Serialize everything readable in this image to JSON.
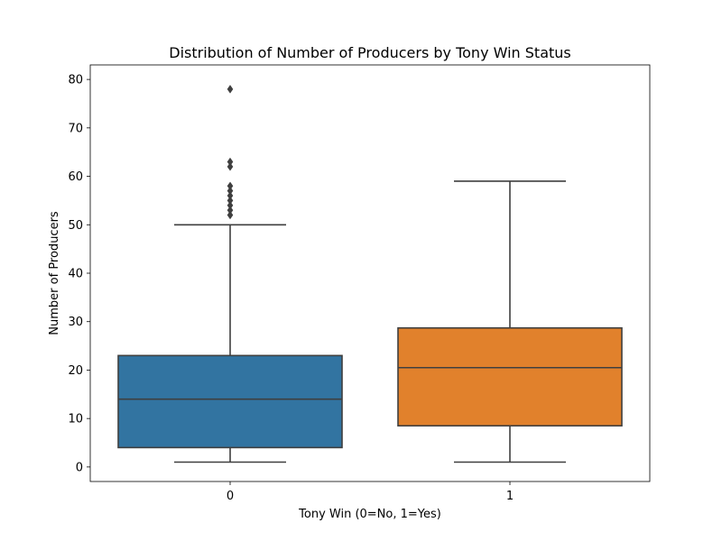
{
  "chart_data": {
    "type": "box",
    "title": "Distribution of Number of Producers by Tony Win Status",
    "xlabel": "Tony Win (0=No, 1=Yes)",
    "ylabel": "Number of Producers",
    "ylim": [
      -3,
      83
    ],
    "yticks": [
      0,
      10,
      20,
      30,
      40,
      50,
      60,
      70,
      80
    ],
    "categories": [
      "0",
      "1"
    ],
    "grid": false,
    "boxes": [
      {
        "category": "0",
        "color": "#3274a1",
        "whisker_low": 1,
        "q1": 4,
        "median": 14,
        "q3": 23,
        "whisker_high": 50,
        "outliers": [
          52,
          53,
          54,
          55,
          56,
          57,
          58,
          62,
          63,
          78
        ]
      },
      {
        "category": "1",
        "color": "#e1812c",
        "whisker_low": 1,
        "q1": 8.5,
        "median": 20.5,
        "q3": 28.7,
        "whisker_high": 59,
        "outliers": []
      }
    ],
    "colors": {
      "outline": "#3f3f3f",
      "axis": "#000000"
    }
  }
}
